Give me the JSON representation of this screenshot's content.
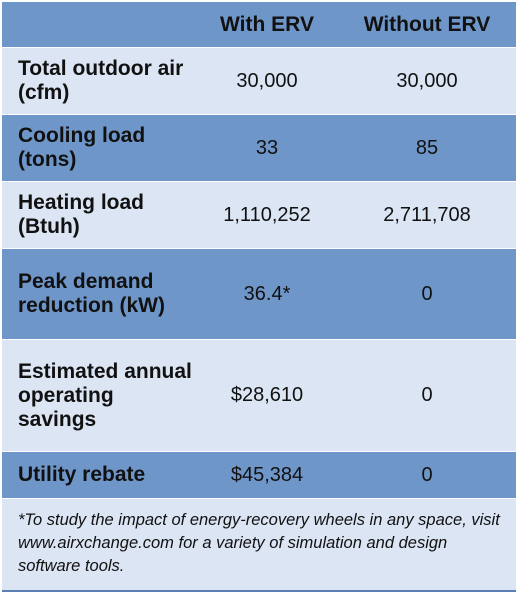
{
  "table": {
    "headers": [
      "",
      "With ERV",
      "Without ERV"
    ],
    "rows": [
      {
        "label": "Total outdoor air (cfm)",
        "with_erv": "30,000",
        "without_erv": "30,000"
      },
      {
        "label": "Cooling load (tons)",
        "with_erv": "33",
        "without_erv": "85"
      },
      {
        "label": "Heating load (Btuh)",
        "with_erv": "1,110,252",
        "without_erv": "2,711,708"
      },
      {
        "label": "Peak demand reduction (kW)",
        "with_erv": "36.4*",
        "without_erv": "0"
      },
      {
        "label": "Estimated annual operating savings",
        "with_erv": "$28,610",
        "without_erv": "0"
      },
      {
        "label": "Utility rebate",
        "with_erv": "$45,384",
        "without_erv": "0"
      }
    ],
    "footnote": "*To study the impact of energy-recovery wheels in any space, visit www.airxchange.com for a variety of simulation and design software tools."
  },
  "colors": {
    "header_row": "#6f96c9",
    "light_row": "#dbe5f3",
    "dark_row": "#6f96c9"
  }
}
